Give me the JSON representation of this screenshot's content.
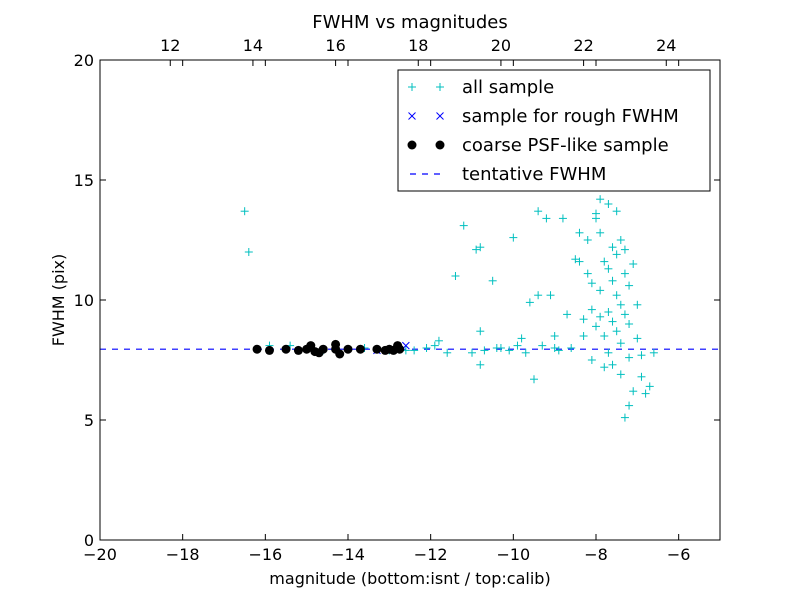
{
  "chart_data": {
    "type": "scatter",
    "title": "FWHM vs magnitudes",
    "xlabel": "magnitude (bottom:isnt / top:calib)",
    "ylabel": "FWHM (pix)",
    "xlim": [
      -20,
      -5
    ],
    "ylim": [
      0,
      20
    ],
    "x_ticks": [
      -20,
      -18,
      -16,
      -14,
      -12,
      -10,
      -8,
      -6
    ],
    "x_tick_labels": [
      "−20",
      "−18",
      "−16",
      "−14",
      "−12",
      "−10",
      "−8",
      "−6"
    ],
    "y_ticks": [
      0,
      5,
      10,
      15,
      20
    ],
    "y_tick_labels": [
      "0",
      "5",
      "10",
      "15",
      "20"
    ],
    "top_axis": {
      "offset": 30.3,
      "ticks": [
        12,
        14,
        16,
        18,
        20,
        22,
        24
      ],
      "tick_labels": [
        "12",
        "14",
        "16",
        "18",
        "20",
        "22",
        "24"
      ]
    },
    "grid": false,
    "legend_position": "top-right",
    "series": [
      {
        "name": "all sample",
        "marker": "plus",
        "color": "#00bfbf",
        "points": [
          [
            -16.5,
            13.7
          ],
          [
            -16.4,
            12.0
          ],
          [
            -15.9,
            8.1
          ],
          [
            -15.4,
            8.1
          ],
          [
            -14.6,
            7.9
          ],
          [
            -13.6,
            8.0
          ],
          [
            -13.0,
            7.9
          ],
          [
            -12.6,
            7.9
          ],
          [
            -12.4,
            7.9
          ],
          [
            -12.1,
            8.0
          ],
          [
            -11.9,
            8.1
          ],
          [
            -11.8,
            8.3
          ],
          [
            -11.6,
            7.8
          ],
          [
            -11.4,
            11.0
          ],
          [
            -11.2,
            13.1
          ],
          [
            -11.0,
            7.8
          ],
          [
            -10.9,
            12.1
          ],
          [
            -10.8,
            12.2
          ],
          [
            -10.8,
            7.3
          ],
          [
            -10.8,
            8.7
          ],
          [
            -10.7,
            7.9
          ],
          [
            -10.5,
            10.8
          ],
          [
            -10.4,
            8.0
          ],
          [
            -10.3,
            8.0
          ],
          [
            -10.1,
            7.9
          ],
          [
            -10.0,
            12.6
          ],
          [
            -9.9,
            8.1
          ],
          [
            -9.8,
            8.4
          ],
          [
            -9.7,
            7.8
          ],
          [
            -9.6,
            9.9
          ],
          [
            -9.5,
            6.7
          ],
          [
            -9.4,
            10.2
          ],
          [
            -9.4,
            13.7
          ],
          [
            -9.3,
            8.1
          ],
          [
            -9.2,
            13.4
          ],
          [
            -9.1,
            10.2
          ],
          [
            -9.0,
            8.0
          ],
          [
            -9.0,
            8.5
          ],
          [
            -8.9,
            7.9
          ],
          [
            -8.8,
            13.4
          ],
          [
            -8.7,
            9.4
          ],
          [
            -8.6,
            8.0
          ],
          [
            -8.5,
            11.7
          ],
          [
            -8.4,
            11.6
          ],
          [
            -8.4,
            12.8
          ],
          [
            -8.3,
            9.2
          ],
          [
            -8.3,
            8.5
          ],
          [
            -8.2,
            11.1
          ],
          [
            -8.2,
            12.5
          ],
          [
            -8.1,
            10.7
          ],
          [
            -8.1,
            9.6
          ],
          [
            -8.1,
            7.5
          ],
          [
            -8.0,
            13.6
          ],
          [
            -8.0,
            13.4
          ],
          [
            -8.0,
            8.9
          ],
          [
            -7.9,
            12.8
          ],
          [
            -7.9,
            14.2
          ],
          [
            -7.9,
            10.4
          ],
          [
            -7.9,
            9.3
          ],
          [
            -7.8,
            8.5
          ],
          [
            -7.8,
            7.2
          ],
          [
            -7.8,
            11.6
          ],
          [
            -7.7,
            14.0
          ],
          [
            -7.7,
            7.8
          ],
          [
            -7.7,
            9.5
          ],
          [
            -7.7,
            11.3
          ],
          [
            -7.6,
            10.8
          ],
          [
            -7.6,
            12.2
          ],
          [
            -7.6,
            9.1
          ],
          [
            -7.6,
            7.3
          ],
          [
            -7.5,
            13.7
          ],
          [
            -7.5,
            11.9
          ],
          [
            -7.5,
            10.2
          ],
          [
            -7.5,
            8.7
          ],
          [
            -7.4,
            12.5
          ],
          [
            -7.4,
            9.8
          ],
          [
            -7.4,
            8.2
          ],
          [
            -7.4,
            6.9
          ],
          [
            -7.3,
            5.1
          ],
          [
            -7.3,
            11.1
          ],
          [
            -7.3,
            9.4
          ],
          [
            -7.3,
            12.1
          ],
          [
            -7.2,
            10.6
          ],
          [
            -7.2,
            9.0
          ],
          [
            -7.2,
            5.6
          ],
          [
            -7.2,
            7.6
          ],
          [
            -7.1,
            11.5
          ],
          [
            -7.1,
            6.2
          ],
          [
            -7.0,
            9.8
          ],
          [
            -7.0,
            8.4
          ],
          [
            -6.9,
            7.7
          ],
          [
            -6.9,
            6.8
          ],
          [
            -6.8,
            6.1
          ],
          [
            -6.7,
            6.4
          ],
          [
            -6.6,
            7.8
          ]
        ]
      },
      {
        "name": "sample for rough FWHM",
        "marker": "x",
        "color": "#0000ff",
        "points": [
          [
            -12.6,
            8.1
          ],
          [
            -12.8,
            7.95
          ],
          [
            -13.3,
            7.9
          ]
        ]
      },
      {
        "name": "coarse PSF-like sample",
        "marker": "dot",
        "color": "#000000",
        "points": [
          [
            -16.2,
            7.95
          ],
          [
            -15.9,
            7.9
          ],
          [
            -15.5,
            7.95
          ],
          [
            -15.2,
            7.9
          ],
          [
            -15.0,
            7.95
          ],
          [
            -14.9,
            8.1
          ],
          [
            -14.8,
            7.85
          ],
          [
            -14.7,
            7.8
          ],
          [
            -14.6,
            7.95
          ],
          [
            -14.3,
            8.15
          ],
          [
            -14.3,
            7.95
          ],
          [
            -14.2,
            7.75
          ],
          [
            -14.0,
            7.95
          ],
          [
            -13.7,
            7.95
          ],
          [
            -13.3,
            7.95
          ],
          [
            -13.1,
            7.9
          ],
          [
            -13.0,
            7.95
          ],
          [
            -12.9,
            7.9
          ],
          [
            -12.8,
            8.1
          ],
          [
            -12.75,
            7.95
          ]
        ]
      },
      {
        "name": "tentative FWHM",
        "marker": "dashed-line",
        "color": "#0000ff",
        "y": 7.95
      }
    ]
  }
}
